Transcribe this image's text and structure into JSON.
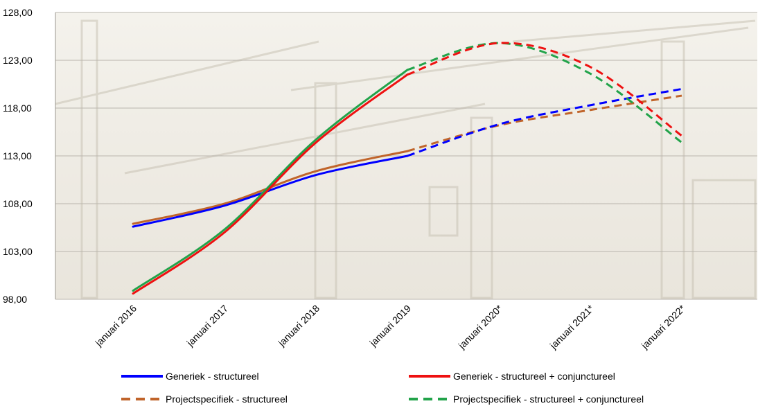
{
  "chart_data": {
    "type": "line",
    "categories": [
      "januari 2016",
      "januari 2017",
      "januari 2018",
      "januari 2019",
      "januari 2020*",
      "januari 2021*",
      "januari 2022*"
    ],
    "ylim": [
      98,
      128
    ],
    "yticks": [
      "98,00",
      "103,00",
      "108,00",
      "113,00",
      "118,00",
      "123,00",
      "128,00"
    ],
    "grid": true,
    "legend_position": "bottom",
    "forecast_from": "januari 2019",
    "series": [
      {
        "name": "Generiek - structureel",
        "color": "#0000ff",
        "values": [
          105.6,
          107.8,
          111.0,
          113.0,
          116.3,
          118.3,
          120.0
        ]
      },
      {
        "name": "Generiek - structureel + conjunctureel",
        "color": "#ee1111",
        "values": [
          98.6,
          105.0,
          114.4,
          121.5,
          124.8,
          122.3,
          115.1
        ]
      },
      {
        "name": "Projectspecifiek - structureel",
        "color": "#c0642a",
        "values": [
          105.9,
          108.0,
          111.4,
          113.5,
          116.2,
          117.8,
          119.3
        ]
      },
      {
        "name": "Projectspecifiek - structureel + conjunctureel",
        "color": "#22a34a",
        "values": [
          98.9,
          105.3,
          114.7,
          122.0,
          124.8,
          121.6,
          114.4
        ]
      }
    ]
  }
}
